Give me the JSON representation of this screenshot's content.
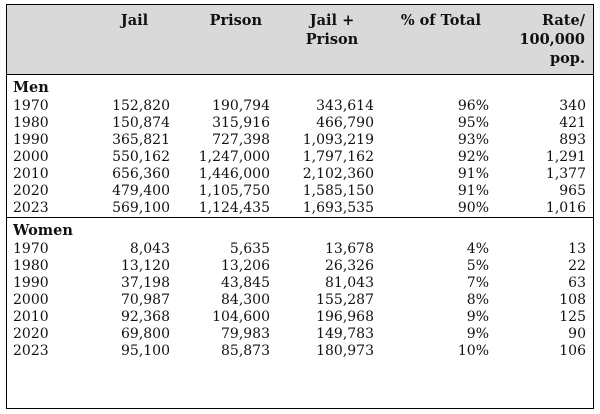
{
  "headers": {
    "col0": "",
    "jail": "Jail",
    "prison": "Prison",
    "jail_prison_1": "Jail +",
    "jail_prison_2": "Prison",
    "pct_total": "% of Total",
    "rate_1": "Rate/",
    "rate_2": "100,000",
    "rate_3": "pop."
  },
  "sections": [
    {
      "label": "Men",
      "rows": [
        {
          "year": "1970",
          "jail": "152,820",
          "prison": "190,794",
          "total": "343,614",
          "pct": "96%",
          "rate": "340"
        },
        {
          "year": "1980",
          "jail": "150,874",
          "prison": "315,916",
          "total": "466,790",
          "pct": "95%",
          "rate": "421"
        },
        {
          "year": "1990",
          "jail": "365,821",
          "prison": "727,398",
          "total": "1,093,219",
          "pct": "93%",
          "rate": "893"
        },
        {
          "year": "2000",
          "jail": "550,162",
          "prison": "1,247,000",
          "total": "1,797,162",
          "pct": "92%",
          "rate": "1,291"
        },
        {
          "year": "2010",
          "jail": "656,360",
          "prison": "1,446,000",
          "total": "2,102,360",
          "pct": "91%",
          "rate": "1,377"
        },
        {
          "year": "2020",
          "jail": "479,400",
          "prison": "1,105,750",
          "total": "1,585,150",
          "pct": "91%",
          "rate": "965"
        },
        {
          "year": "2023",
          "jail": "569,100",
          "prison": "1,124,435",
          "total": "1,693,535",
          "pct": "90%",
          "rate": "1,016"
        }
      ]
    },
    {
      "label": "Women",
      "rows": [
        {
          "year": "1970",
          "jail": "8,043",
          "prison": "5,635",
          "total": "13,678",
          "pct": "4%",
          "rate": "13"
        },
        {
          "year": "1980",
          "jail": "13,120",
          "prison": "13,206",
          "total": "26,326",
          "pct": "5%",
          "rate": "22"
        },
        {
          "year": "1990",
          "jail": "37,198",
          "prison": "43,845",
          "total": "81,043",
          "pct": "7%",
          "rate": "63"
        },
        {
          "year": "2000",
          "jail": "70,987",
          "prison": "84,300",
          "total": "155,287",
          "pct": "8%",
          "rate": "108"
        },
        {
          "year": "2010",
          "jail": "92,368",
          "prison": "104,600",
          "total": "196,968",
          "pct": "9%",
          "rate": "125"
        },
        {
          "year": "2020",
          "jail": "69,800",
          "prison": "79,983",
          "total": "149,783",
          "pct": "9%",
          "rate": "90"
        },
        {
          "year": "2023",
          "jail": "95,100",
          "prison": "85,873",
          "total": "180,973",
          "pct": "10%",
          "rate": "106"
        }
      ]
    }
  ]
}
